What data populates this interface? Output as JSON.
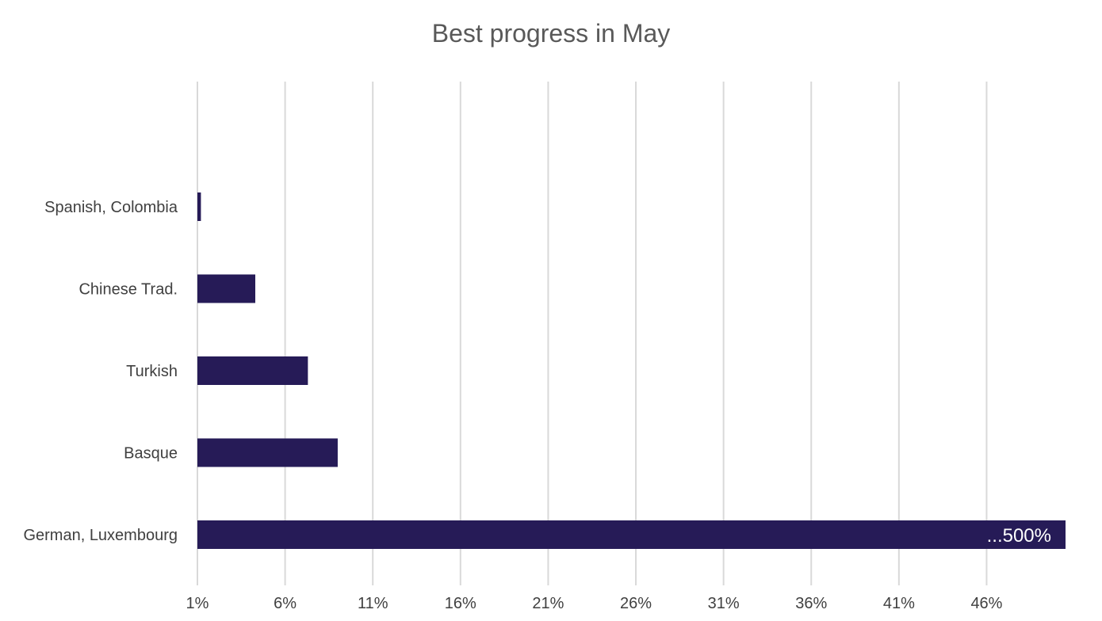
{
  "chart_data": {
    "type": "bar",
    "orientation": "horizontal",
    "title": "Best progress in May",
    "categories": [
      "Spanish, Colombia",
      "Chinese Trad.",
      "Turkish",
      "Basque",
      "German, Luxembourg"
    ],
    "values": [
      1.2,
      4.3,
      7.3,
      9.0,
      500
    ],
    "xlabel": "",
    "ylabel": "",
    "xlim": [
      1,
      50.5
    ],
    "ticks": [
      1,
      6,
      11,
      16,
      21,
      26,
      31,
      36,
      41,
      46
    ],
    "tick_labels": [
      "1%",
      "6%",
      "11%",
      "16%",
      "21%",
      "26%",
      "31%",
      "36%",
      "41%",
      "46%"
    ],
    "data_labels": [
      "",
      "",
      "",
      "",
      "...500%"
    ],
    "bar_color": "#261b57",
    "grid": true,
    "legend": "none"
  }
}
